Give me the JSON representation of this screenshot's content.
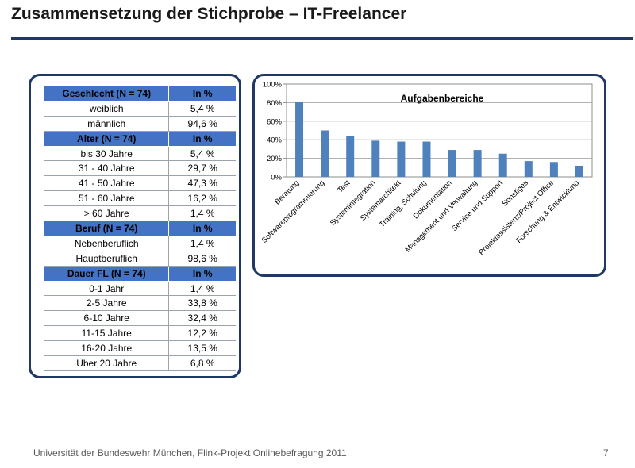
{
  "slide": {
    "title": "Zusammensetzung der Stichprobe –  IT-Freelancer",
    "footer": "Universität der Bundeswehr München, Flink-Projekt Onlinebefragung  2011",
    "page_number": "7"
  },
  "table": {
    "sections": [
      {
        "header": "Geschlecht (N = 74)",
        "col": "In %",
        "rows": [
          [
            "weiblich",
            "5,4 %"
          ],
          [
            "männlich",
            "94,6 %"
          ]
        ]
      },
      {
        "header": "Alter (N = 74)",
        "col": "In %",
        "rows": [
          [
            "bis 30 Jahre",
            "5,4 %"
          ],
          [
            "31 - 40 Jahre",
            "29,7 %"
          ],
          [
            "41 - 50 Jahre",
            "47,3 %"
          ],
          [
            "51 - 60 Jahre",
            "16,2 %"
          ],
          [
            "> 60 Jahre",
            "1,4 %"
          ]
        ]
      },
      {
        "header": "Beruf (N = 74)",
        "col": "In %",
        "rows": [
          [
            "Nebenberuflich",
            "1,4 %"
          ],
          [
            "Hauptberuflich",
            "98,6 %"
          ]
        ]
      },
      {
        "header": "Dauer FL (N = 74)",
        "col": "In %",
        "rows": [
          [
            "0-1 Jahr",
            "1,4 %"
          ],
          [
            "2-5 Jahre",
            "33,8 %"
          ],
          [
            "6-10 Jahre",
            "32,4 %"
          ],
          [
            "11-15 Jahre",
            "12,2 %"
          ],
          [
            "16-20 Jahre",
            "13,5 %"
          ],
          [
            "Über 20 Jahre",
            "6,8 %"
          ]
        ]
      }
    ]
  },
  "colors": {
    "bar": "#4f81bd",
    "header_fill": "#4472c4",
    "frame": "#1f3864"
  },
  "chart_data": {
    "type": "bar",
    "title": "Aufgabenbereiche",
    "categories": [
      "Beratung",
      "Softwareprogrammierung",
      "Test",
      "Systemintegration",
      "Systemarchitekt",
      "Training, Schulung",
      "Dokumentation",
      "Management und Verwaltung",
      "Service und Support",
      "Sonstiges",
      "Projektassistenz/Project Office",
      "Forschung & Entwicklung"
    ],
    "values": [
      81,
      50,
      44,
      39,
      38,
      38,
      29,
      29,
      25,
      17,
      16,
      12
    ],
    "ylim": [
      0,
      100
    ],
    "yticks": [
      "0%",
      "20%",
      "40%",
      "60%",
      "80%",
      "100%"
    ],
    "grid": true,
    "legend": "none"
  }
}
